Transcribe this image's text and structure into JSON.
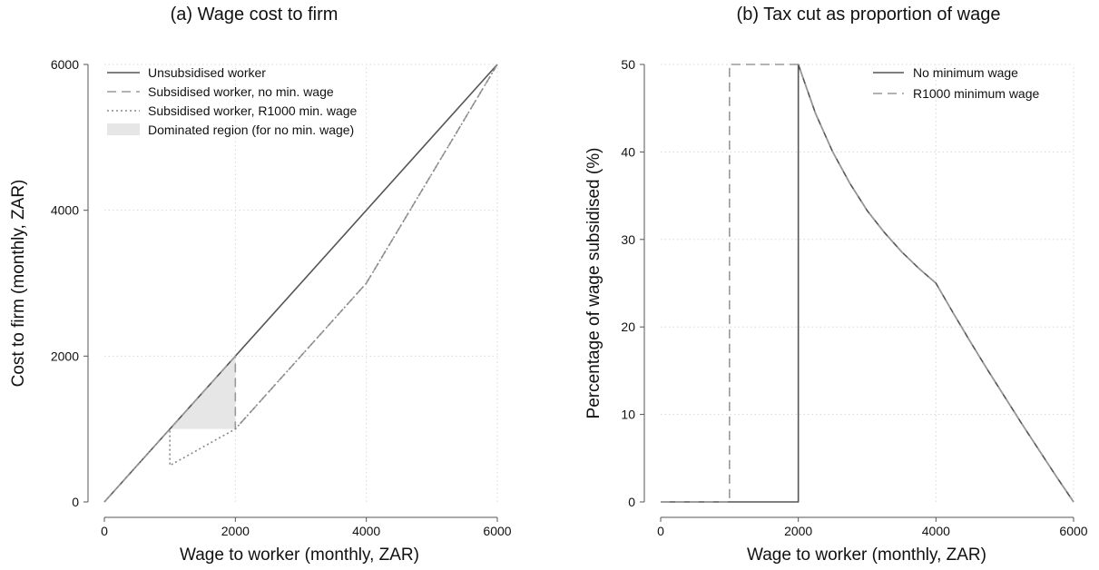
{
  "chart_data": [
    {
      "type": "line",
      "title": "(a) Wage cost to firm",
      "xlabel": "Wage to worker (monthly, ZAR)",
      "ylabel": "Cost to firm (monthly, ZAR)",
      "xlim": [
        0,
        6000
      ],
      "ylim": [
        0,
        6000
      ],
      "xticks": [
        0,
        2000,
        4000,
        6000
      ],
      "yticks": [
        0,
        2000,
        4000,
        6000
      ],
      "grid": true,
      "legend_position": "top-left",
      "series": [
        {
          "name": "Unsubsidised worker",
          "style": "solid",
          "color": "#555555",
          "x": [
            0,
            6000
          ],
          "y": [
            0,
            6000
          ]
        },
        {
          "name": "Subsidised worker, no min. wage",
          "style": "dashed",
          "color": "#999999",
          "x": [
            0,
            2000,
            2000,
            4000,
            6000
          ],
          "y": [
            0,
            2000,
            1000,
            3000,
            6000
          ]
        },
        {
          "name": "Subsidised worker, R1000 min. wage",
          "style": "dotted",
          "color": "#888888",
          "x": [
            0,
            1000,
            1000,
            2000,
            4000,
            6000
          ],
          "y": [
            0,
            1000,
            500,
            1000,
            3000,
            6000
          ]
        }
      ],
      "regions": [
        {
          "name": "Dominated region (for no min. wage)",
          "color": "#e6e6e6",
          "x": [
            1000,
            2000,
            2000
          ],
          "y": [
            1000,
            2000,
            1000
          ]
        }
      ]
    },
    {
      "type": "line",
      "title": "(b) Tax cut as proportion of wage",
      "xlabel": "Wage to worker (monthly, ZAR)",
      "ylabel": "Percentage of wage subsidised (%)",
      "xlim": [
        0,
        6000
      ],
      "ylim": [
        0,
        50
      ],
      "xticks": [
        0,
        2000,
        4000,
        6000
      ],
      "yticks": [
        0,
        10,
        20,
        30,
        40,
        50
      ],
      "grid": true,
      "legend_position": "top-right",
      "series": [
        {
          "name": "No minimum wage",
          "style": "solid",
          "color": "#555555",
          "x": [
            0,
            2000,
            2000,
            2250,
            2500,
            2750,
            3000,
            3250,
            3500,
            3750,
            4000,
            4250,
            4500,
            4750,
            5000,
            5250,
            5500,
            5750,
            6000
          ],
          "y": [
            0,
            0,
            50,
            44.4,
            40,
            36.4,
            33.3,
            30.8,
            28.6,
            26.7,
            25,
            21.6,
            18.3,
            15.1,
            12,
            8.9,
            5.9,
            2.9,
            0
          ]
        },
        {
          "name": "R1000 minimum wage",
          "style": "dashed",
          "color": "#999999",
          "x": [
            0,
            1000,
            1000,
            2000,
            2250,
            2500,
            2750,
            3000,
            3250,
            3500,
            3750,
            4000,
            4250,
            4500,
            4750,
            5000,
            5250,
            5500,
            5750,
            6000
          ],
          "y": [
            0,
            0,
            50,
            50,
            44.4,
            40,
            36.4,
            33.3,
            30.8,
            28.6,
            26.7,
            25,
            21.6,
            18.3,
            15.1,
            12,
            8.9,
            5.9,
            2.9,
            0
          ]
        }
      ]
    }
  ]
}
